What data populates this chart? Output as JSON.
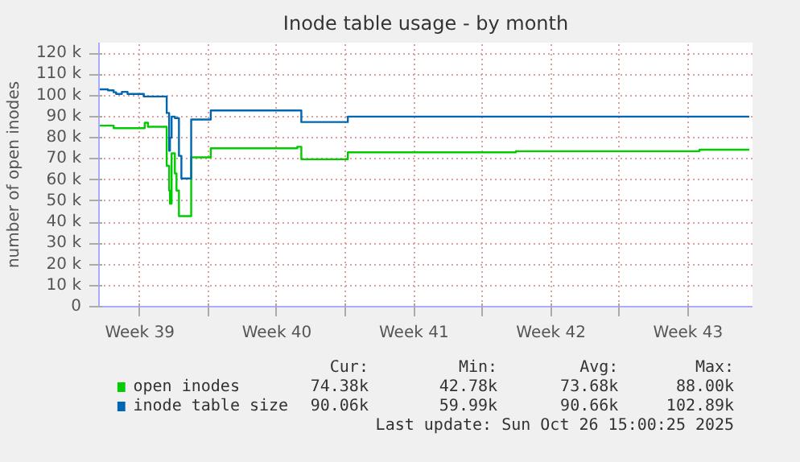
{
  "chart_data": {
    "type": "step",
    "title": "Inode table usage - by month",
    "ylabel": "number of open inodes",
    "x": [
      "2025-09-23T11:00",
      "2025-09-23T21:00",
      "2025-09-24T04:00",
      "2025-09-24T07:00",
      "2025-09-24T14:00",
      "2025-09-24T21:00",
      "2025-09-25T13:00",
      "2025-09-25T17:00",
      "2025-09-25T18:00",
      "2025-09-25T22:00",
      "2025-09-26T16:00",
      "2025-09-26T21:00",
      "2025-09-27T00:00",
      "2025-09-27T01:00",
      "2025-09-27T03:00",
      "2025-09-27T07:00",
      "2025-09-27T09:00",
      "2025-09-27T12:00",
      "2025-09-27T15:00",
      "2025-09-27T23:00",
      "2025-09-28T03:00",
      "2025-09-29T01:00",
      "2025-09-29T03:00",
      "2025-10-03T13:00",
      "2025-10-03T18:00",
      "2025-10-06T01:00",
      "2025-10-06T03:00",
      "2025-10-14T17:00",
      "2025-10-24T02:00",
      "2025-10-26T15:00"
    ],
    "series": [
      {
        "name": "open inodes",
        "color": "#00cc00",
        "values": [
          85700,
          85700,
          84500,
          84500,
          84500,
          84500,
          84500,
          84500,
          87100,
          85200,
          85200,
          66700,
          55000,
          48800,
          72600,
          63100,
          55000,
          42900,
          42900,
          42900,
          70700,
          70700,
          75000,
          75700,
          69800,
          69800,
          73100,
          73600,
          74300,
          74300
        ]
      },
      {
        "name": "inode table size",
        "color": "#0066b3",
        "values": [
          102900,
          102400,
          101500,
          100700,
          101700,
          100700,
          100700,
          99500,
          99500,
          99500,
          99500,
          91700,
          73800,
          80000,
          90000,
          89300,
          89300,
          71400,
          60700,
          60700,
          88600,
          88600,
          92900,
          92900,
          87400,
          87400,
          90000,
          90000,
          90000,
          90000
        ]
      }
    ],
    "xlim": [
      "2025-09-23T10:00",
      "2025-10-26T19:00"
    ],
    "xticks": [
      {
        "value": "2025-09-25T12:00",
        "label": "Week 39"
      },
      {
        "value": "2025-09-29T00:00",
        "label": null
      },
      {
        "value": "2025-10-02T12:00",
        "label": "Week 40"
      },
      {
        "value": "2025-10-06T00:00",
        "label": null
      },
      {
        "value": "2025-10-09T12:00",
        "label": "Week 41"
      },
      {
        "value": "2025-10-13T00:00",
        "label": null
      },
      {
        "value": "2025-10-16T12:00",
        "label": "Week 42"
      },
      {
        "value": "2025-10-20T00:00",
        "label": null
      },
      {
        "value": "2025-10-23T12:00",
        "label": "Week 43"
      }
    ],
    "ylim": [
      0,
      125000
    ],
    "yticks": [
      0,
      {
        "value": 10000,
        "label": "10 k"
      },
      {
        "value": 20000,
        "label": "20 k"
      },
      {
        "value": 30000,
        "label": "30 k"
      },
      {
        "value": 40000,
        "label": "40 k"
      },
      {
        "value": 50000,
        "label": "50 k"
      },
      {
        "value": 60000,
        "label": "60 k"
      },
      {
        "value": 70000,
        "label": "70 k"
      },
      {
        "value": 80000,
        "label": "80 k"
      },
      {
        "value": 90000,
        "label": "90 k"
      },
      {
        "value": 100000,
        "label": "100 k"
      },
      {
        "value": 110000,
        "label": "110 k"
      },
      {
        "value": 120000,
        "label": "120 k"
      }
    ],
    "grid": true,
    "legend": "bottom",
    "annotations": [
      "Cur:",
      "Min:",
      "Avg:",
      "Max:",
      "74.38k",
      "42.78k",
      "73.68k",
      "88.00k",
      "90.06k",
      "59.99k",
      "90.66k",
      "102.89k",
      "Last update: Sun Oct 26 15:00:25 2025"
    ]
  }
}
